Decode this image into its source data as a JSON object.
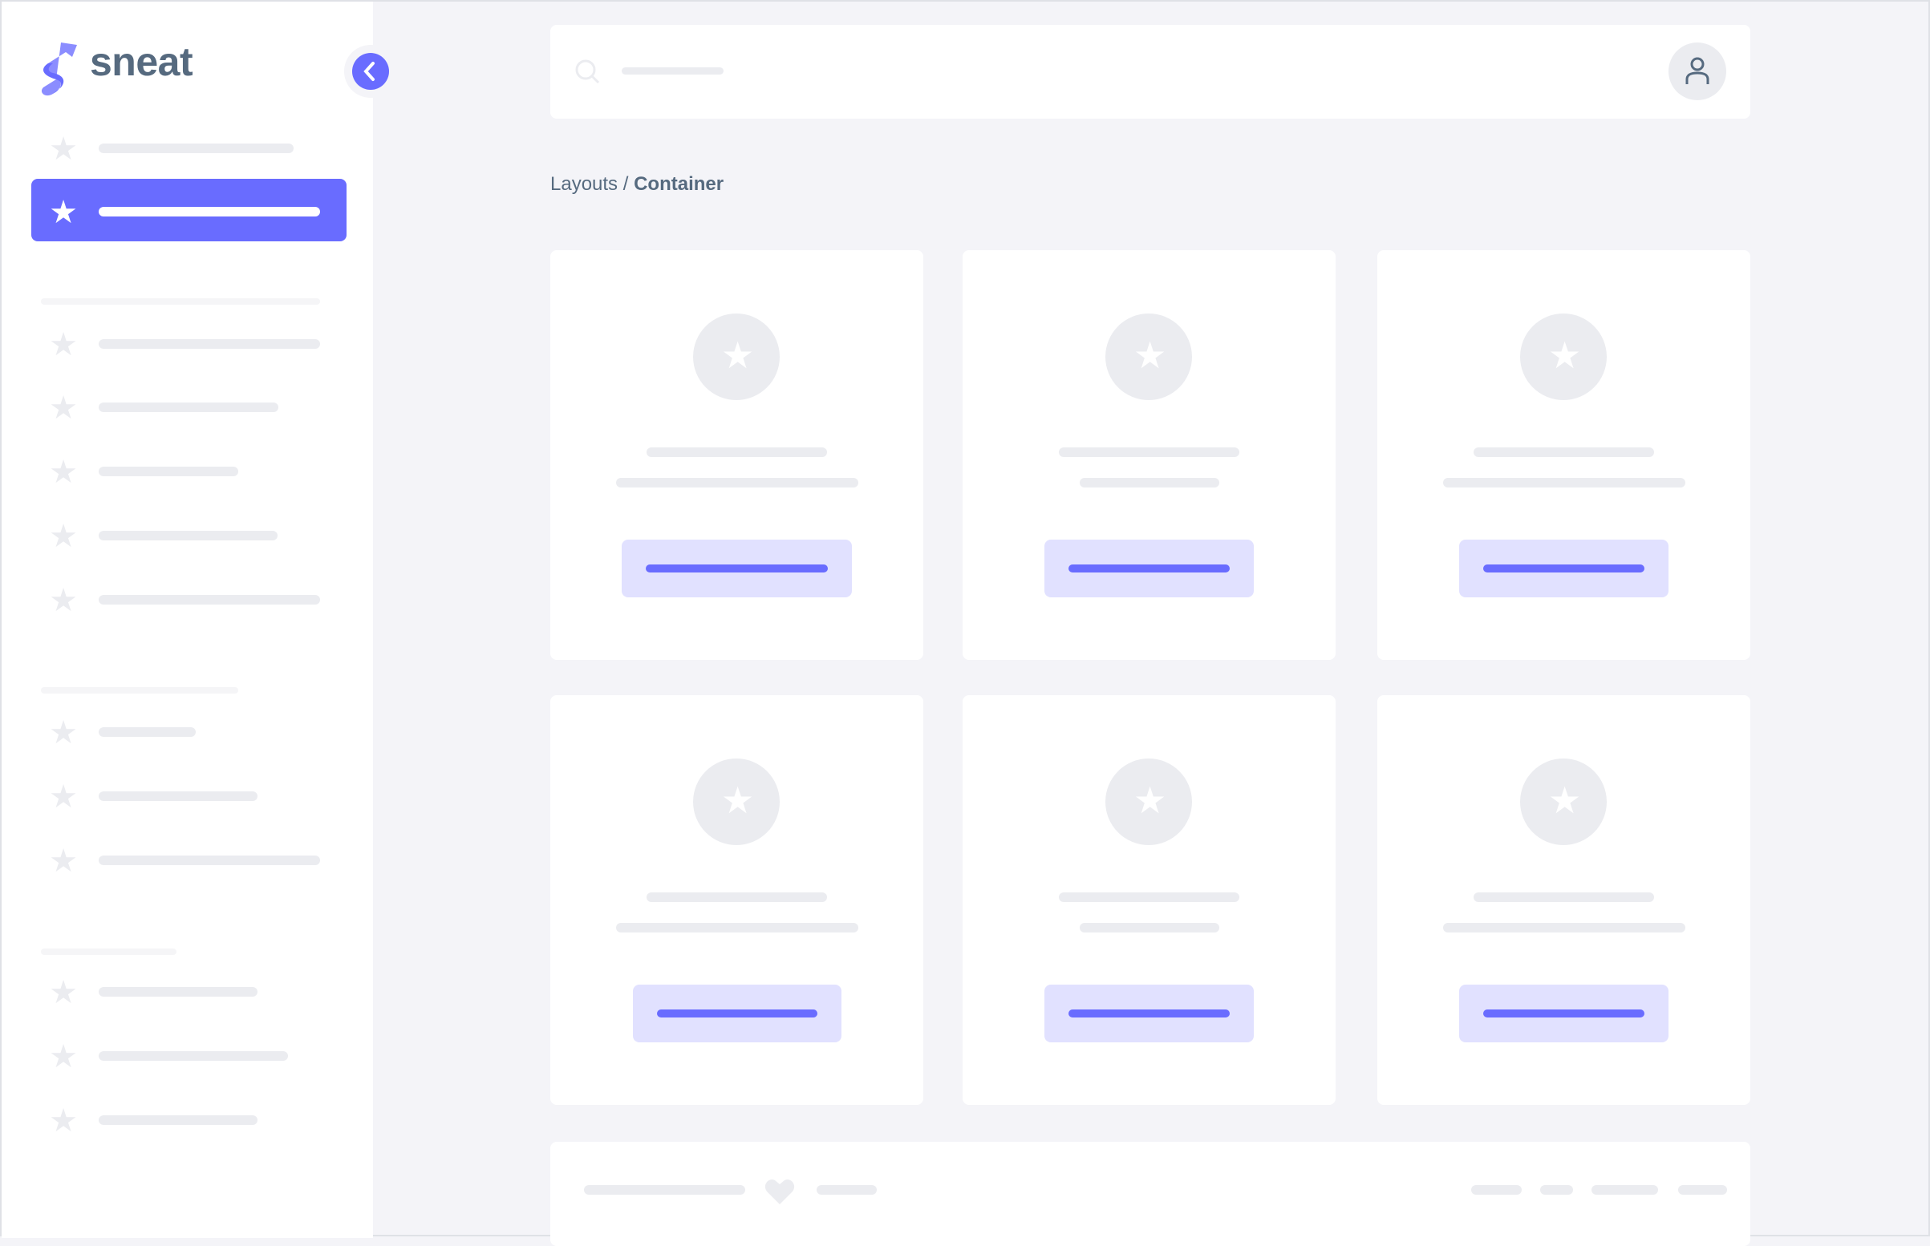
{
  "brand": {
    "name": "sneat",
    "accent": "#696cff",
    "text_color": "#566a7f"
  },
  "breadcrumb": {
    "parent": "Layouts",
    "separator": "/",
    "current": "Container"
  },
  "icons": {
    "nav": "star-icon",
    "collapse": "chevron-left-icon",
    "search": "search-icon",
    "user": "user-icon",
    "footer": "heart-icon"
  }
}
